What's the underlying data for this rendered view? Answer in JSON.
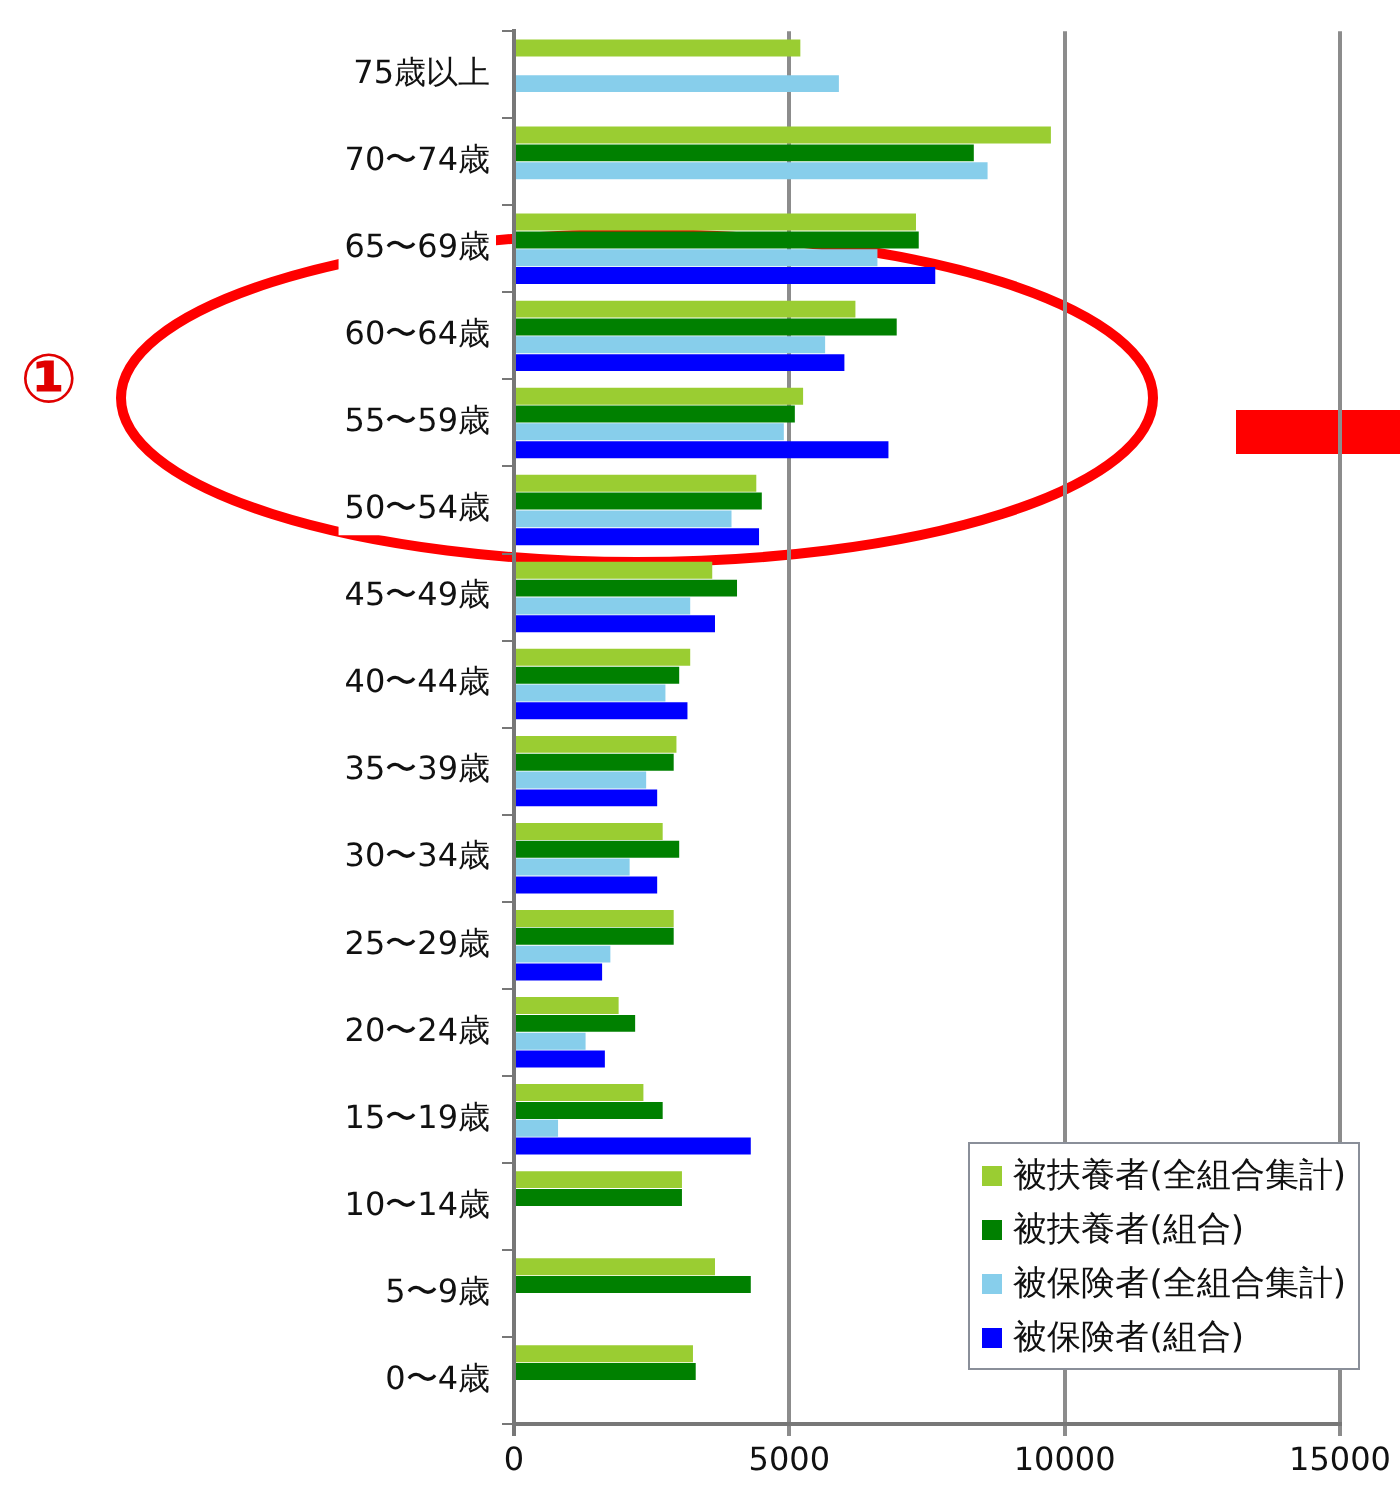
{
  "chart_data": {
    "type": "bar",
    "orientation": "horizontal",
    "categories": [
      "75歳以上",
      "70〜74歳",
      "65〜69歳",
      "60〜64歳",
      "55〜59歳",
      "50〜54歳",
      "45〜49歳",
      "40〜44歳",
      "35〜39歳",
      "30〜34歳",
      "25〜29歳",
      "20〜24歳",
      "15〜19歳",
      "10〜14歳",
      "5〜9歳",
      "0〜4歳"
    ],
    "series": [
      {
        "name": "被扶養者(全組合集計)",
        "color": "#9acd32",
        "values": [
          5200,
          9750,
          7300,
          6200,
          5250,
          4400,
          3600,
          3200,
          2950,
          2700,
          2900,
          1900,
          2350,
          3050,
          3650,
          3250
        ]
      },
      {
        "name": "被扶養者(組合)",
        "color": "#008000",
        "values": [
          null,
          8350,
          7350,
          6950,
          5100,
          4500,
          4050,
          3000,
          2900,
          3000,
          2900,
          2200,
          2700,
          3050,
          4300,
          3300
        ]
      },
      {
        "name": "被保険者(全組合集計)",
        "color": "#87ceeb",
        "values": [
          5900,
          8600,
          6600,
          5650,
          4900,
          3950,
          3200,
          2750,
          2400,
          2100,
          1750,
          1300,
          800,
          null,
          null,
          null
        ]
      },
      {
        "name": "被保険者(組合)",
        "color": "#0000ff",
        "values": [
          null,
          null,
          7650,
          6000,
          6800,
          4450,
          3650,
          3150,
          2600,
          2600,
          1600,
          1650,
          4300,
          null,
          null,
          null
        ]
      }
    ],
    "xlim": [
      0,
      15000
    ],
    "xticks": [
      0,
      5000,
      10000,
      15000
    ],
    "grid": "x",
    "legend": "bottom right",
    "annotations": [
      "①"
    ]
  }
}
